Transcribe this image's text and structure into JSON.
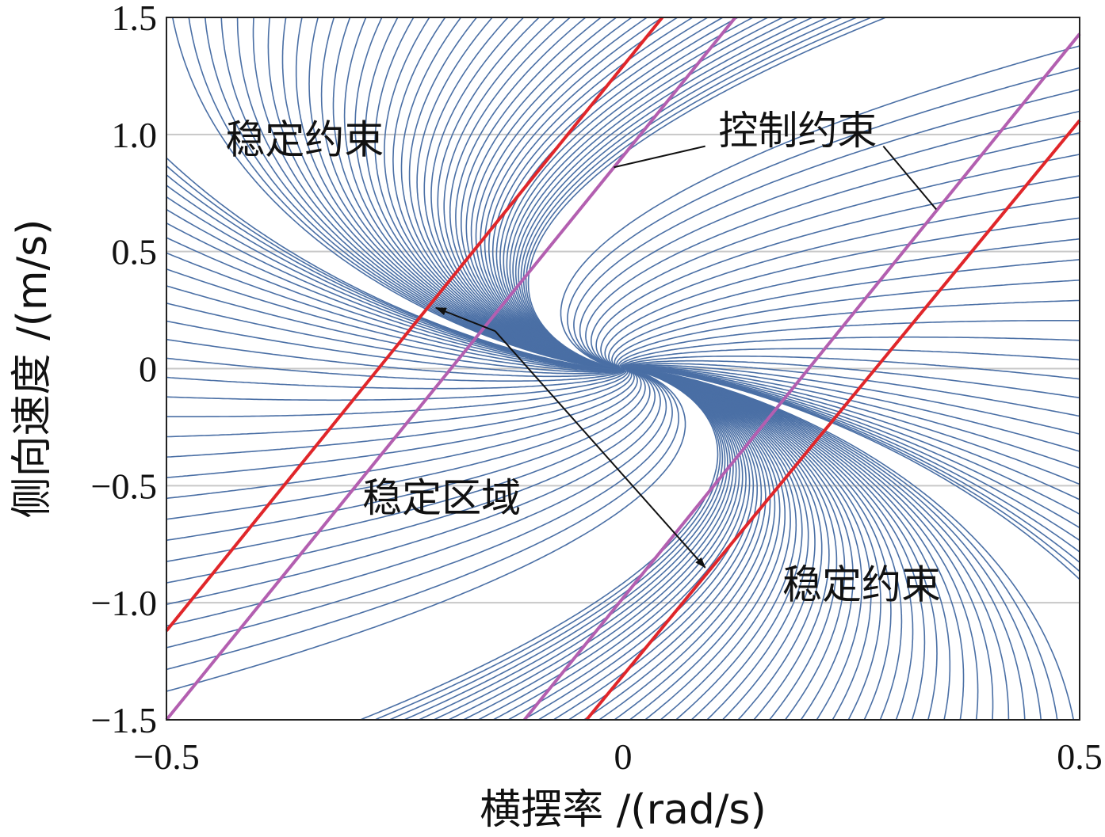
{
  "chart_data": {
    "type": "line",
    "xlabel": "横摆率 /(rad/s)",
    "ylabel": "侧向速度 /(m/s)",
    "xlim": [
      -0.5,
      0.5
    ],
    "ylim": [
      -1.5,
      1.5
    ],
    "x_ticks": [
      "−0.5",
      "0",
      "0.5"
    ],
    "x_tick_values": [
      -0.5,
      0,
      0.5
    ],
    "y_ticks": [
      "1.5",
      "1.0",
      "0.5",
      "0",
      "−0.5",
      "−1.0",
      "−1.5"
    ],
    "y_tick_values": [
      1.5,
      1.0,
      0.5,
      0,
      -0.5,
      -1.0,
      -1.5
    ],
    "grid": true,
    "colors": {
      "trajectory": "#4a6fa5",
      "stability_constraint": "#e0262a",
      "control_constraint": "#b35fb0",
      "grid": "#c8c8c8"
    },
    "series": [
      {
        "role": "stability_constraint",
        "x": [
          -0.5,
          0.043
        ],
        "y": [
          -1.12,
          1.5
        ]
      },
      {
        "role": "stability_constraint",
        "x": [
          -0.04,
          0.5
        ],
        "y": [
          -1.5,
          1.06
        ]
      },
      {
        "role": "control_constraint",
        "x": [
          -0.5,
          0.123
        ],
        "y": [
          -1.5,
          1.5
        ]
      },
      {
        "role": "control_constraint",
        "x": [
          -0.108,
          0.5
        ],
        "y": [
          -1.5,
          1.43
        ]
      }
    ],
    "annotations": [
      {
        "text": "稳定约束",
        "x": -0.34,
        "y": 0.98
      },
      {
        "text": "控制约束",
        "x": 0.2,
        "y": 1.02
      },
      {
        "text": "稳定区域",
        "x": -0.19,
        "y": -0.55
      },
      {
        "text": "稳定约束",
        "x": 0.27,
        "y": -0.92
      }
    ]
  }
}
